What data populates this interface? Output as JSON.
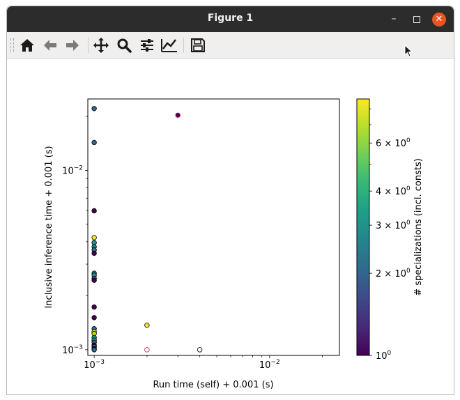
{
  "window": {
    "title": "Figure 1",
    "controls": {
      "minimize": "–",
      "maximize": "☐",
      "close": "✕"
    }
  },
  "toolbar": {
    "buttons": [
      {
        "name": "home-icon",
        "tooltip": "Home"
      },
      {
        "name": "back-icon",
        "tooltip": "Back"
      },
      {
        "name": "forward-icon",
        "tooltip": "Forward"
      },
      {
        "name": "pan-icon",
        "tooltip": "Pan"
      },
      {
        "name": "zoom-icon",
        "tooltip": "Zoom"
      },
      {
        "name": "subplots-icon",
        "tooltip": "Subplots"
      },
      {
        "name": "customize-icon",
        "tooltip": "Customize"
      },
      {
        "name": "save-icon",
        "tooltip": "Save"
      }
    ]
  },
  "chart_data": {
    "type": "scatter",
    "xlabel": "Run time (self) + 0.001 (s)",
    "ylabel": "Inclusive inference time + 0.001 (s)",
    "xscale": "log",
    "yscale": "log",
    "xlim": [
      0.00092,
      0.025
    ],
    "ylim": [
      0.00093,
      0.025
    ],
    "xticks": [
      {
        "value": 0.001,
        "base": "10",
        "exp": "−3"
      },
      {
        "value": 0.01,
        "base": "10",
        "exp": "−2"
      }
    ],
    "yticks": [
      {
        "value": 0.001,
        "base": "10",
        "exp": "−3"
      },
      {
        "value": 0.01,
        "base": "10",
        "exp": "−2"
      }
    ],
    "colorbar": {
      "label": "# specializations (incl. consts)",
      "scale": "log",
      "range": [
        1,
        8.7
      ],
      "colormap": "viridis",
      "ticks": [
        {
          "value": 1,
          "mant": "10",
          "exp": "0"
        },
        {
          "value": 2,
          "mant": "2 × 10",
          "exp": "0"
        },
        {
          "value": 3,
          "mant": "3 × 10",
          "exp": "0"
        },
        {
          "value": 4,
          "mant": "4 × 10",
          "exp": "0"
        },
        {
          "value": 6,
          "mant": "6 × 10",
          "exp": "0"
        }
      ]
    },
    "points": [
      {
        "x": 0.001,
        "y": 0.0221,
        "c": 2
      },
      {
        "x": 0.001,
        "y": 0.0143,
        "c": 2
      },
      {
        "x": 0.003,
        "y": 0.0203,
        "c": 1,
        "edge": "#c2185b"
      },
      {
        "x": 0.001,
        "y": 0.00595,
        "c": 1
      },
      {
        "x": 0.001,
        "y": 0.00422,
        "c": 8.7
      },
      {
        "x": 0.001,
        "y": 0.00395,
        "c": 3
      },
      {
        "x": 0.001,
        "y": 0.00375,
        "c": 2.5
      },
      {
        "x": 0.001,
        "y": 0.0036,
        "c": 2.2
      },
      {
        "x": 0.001,
        "y": 0.00345,
        "c": 1
      },
      {
        "x": 0.001,
        "y": 0.00267,
        "c": 2
      },
      {
        "x": 0.001,
        "y": 0.0026,
        "c": 3
      },
      {
        "x": 0.001,
        "y": 0.0025,
        "c": 2
      },
      {
        "x": 0.001,
        "y": 0.00244,
        "c": 1
      },
      {
        "x": 0.001,
        "y": 0.00173,
        "c": 1
      },
      {
        "x": 0.001,
        "y": 0.00151,
        "c": 1
      },
      {
        "x": 0.001,
        "y": 0.00131,
        "c": 2
      },
      {
        "x": 0.001,
        "y": 0.00126,
        "c": 8
      },
      {
        "x": 0.001,
        "y": 0.00123,
        "c": 7
      },
      {
        "x": 0.001,
        "y": 0.00117,
        "c": 3
      },
      {
        "x": 0.001,
        "y": 0.00113,
        "c": 4
      },
      {
        "x": 0.001,
        "y": 0.0011,
        "c": 2
      },
      {
        "x": 0.001,
        "y": 0.00106,
        "c": 1
      },
      {
        "x": 0.001,
        "y": 0.00104,
        "c": 3
      },
      {
        "x": 0.001,
        "y": 0.00102,
        "c": 1
      },
      {
        "x": 0.001,
        "y": 0.001,
        "c": 2
      },
      {
        "x": 0.002,
        "y": 0.00137,
        "c": 8.7
      },
      {
        "x": 0.002,
        "y": 0.001,
        "c": 1,
        "edge": "#c2185b",
        "fill": "#ffffff"
      },
      {
        "x": 0.004,
        "y": 0.001,
        "c": null,
        "fill": "#ffffff"
      }
    ]
  }
}
